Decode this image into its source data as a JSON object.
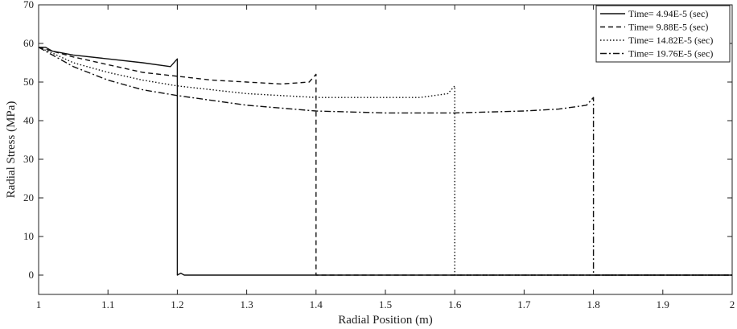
{
  "chart_data": {
    "type": "line",
    "title": "",
    "xlabel": "Radial Position (m)",
    "ylabel": "Radial Stress (MPa)",
    "xlim": [
      1,
      2
    ],
    "ylim": [
      -5,
      70
    ],
    "xticks": [
      1,
      1.1,
      1.2,
      1.3,
      1.4,
      1.5,
      1.6,
      1.7,
      1.8,
      1.9,
      2
    ],
    "xtick_labels": [
      "1",
      "1.1",
      "1.2",
      "1.3",
      "1.4",
      "1.5",
      "1.6",
      "1.7",
      "1.8",
      "1.9",
      "2"
    ],
    "yticks": [
      0,
      10,
      20,
      30,
      40,
      50,
      60,
      70
    ],
    "ytick_labels": [
      "0",
      "10",
      "20",
      "30",
      "40",
      "50",
      "60",
      "70"
    ],
    "grid": false,
    "legend_position": "top-right",
    "series": [
      {
        "name": "Time= 4.94E-5 (sec)",
        "style": "solid",
        "x": [
          1.0,
          1.01,
          1.02,
          1.05,
          1.1,
          1.15,
          1.19,
          1.2,
          1.2,
          1.205,
          1.21,
          1.3,
          1.4,
          1.5,
          1.6,
          1.7,
          1.8,
          1.9,
          2.0
        ],
        "y": [
          59,
          59,
          58,
          57,
          56,
          55,
          54,
          56,
          0,
          0.5,
          0,
          0,
          0,
          0,
          0,
          0,
          0,
          0,
          0
        ]
      },
      {
        "name": "Time= 9.88E-5 (sec)",
        "style": "dashed",
        "x": [
          1.0,
          1.02,
          1.05,
          1.1,
          1.15,
          1.2,
          1.25,
          1.3,
          1.35,
          1.39,
          1.4,
          1.4,
          1.41,
          1.5,
          1.6,
          1.7,
          1.8,
          1.9,
          2.0
        ],
        "y": [
          59,
          58,
          56.5,
          54.5,
          52.5,
          51.5,
          50.5,
          50,
          49.5,
          50,
          52,
          0,
          0,
          0,
          0,
          0,
          0,
          0,
          0
        ]
      },
      {
        "name": "Time= 14.82E-5 (sec)",
        "style": "dotted",
        "x": [
          1.0,
          1.02,
          1.05,
          1.1,
          1.15,
          1.2,
          1.3,
          1.4,
          1.45,
          1.5,
          1.55,
          1.59,
          1.6,
          1.6,
          1.61,
          1.7,
          1.8,
          1.9,
          2.0
        ],
        "y": [
          59,
          57.5,
          55,
          52.5,
          50.5,
          49,
          47,
          46,
          46,
          46,
          46,
          47,
          49,
          0,
          0,
          0,
          0,
          0,
          0
        ]
      },
      {
        "name": "Time= 19.76E-5 (sec)",
        "style": "dashdot",
        "x": [
          1.0,
          1.02,
          1.05,
          1.1,
          1.15,
          1.2,
          1.3,
          1.4,
          1.5,
          1.6,
          1.7,
          1.75,
          1.79,
          1.8,
          1.8,
          1.81,
          1.9,
          2.0
        ],
        "y": [
          59,
          57,
          54,
          50.5,
          48,
          46.5,
          44,
          42.5,
          42,
          42,
          42.5,
          43,
          44,
          46,
          0,
          0,
          0,
          0
        ]
      }
    ]
  }
}
